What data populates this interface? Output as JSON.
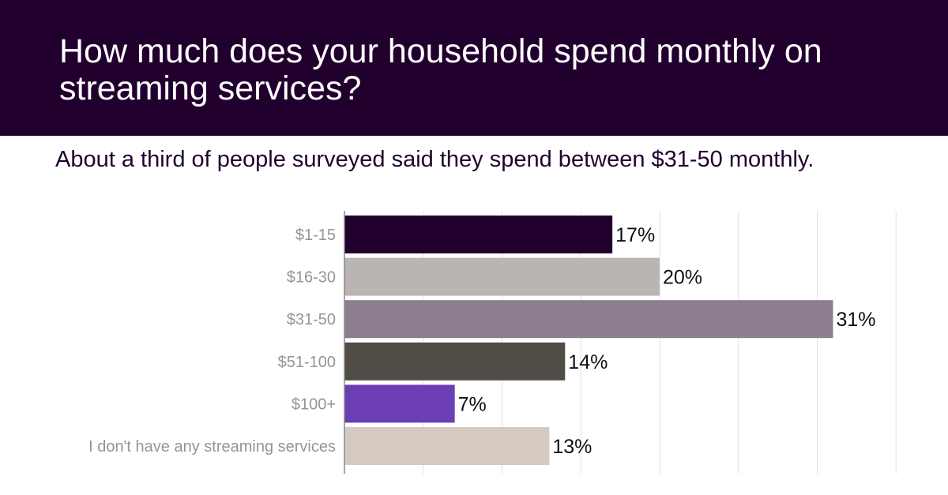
{
  "header": {
    "title": "How much does your household spend monthly on streaming services?",
    "subtitle": "About a third of people surveyed said they spend between $31-50 monthly.",
    "background_color": "#22002e"
  },
  "chart_data": {
    "type": "bar",
    "orientation": "horizontal",
    "categories": [
      "$1-15",
      "$16-30",
      "$31-50",
      "$51-100",
      "$100+",
      "I don't have any streaming services"
    ],
    "values": [
      17,
      20,
      31,
      14,
      7,
      13
    ],
    "data_labels": [
      "17%",
      "20%",
      "31%",
      "14%",
      "7%",
      "13%"
    ],
    "colors": [
      "#22002e",
      "#bab5b3",
      "#8c7d8f",
      "#524c47",
      "#6b3fb3",
      "#d5c9c2"
    ],
    "xlim": [
      0,
      35
    ],
    "grid_step": 5,
    "grid": true,
    "legend": false
  }
}
